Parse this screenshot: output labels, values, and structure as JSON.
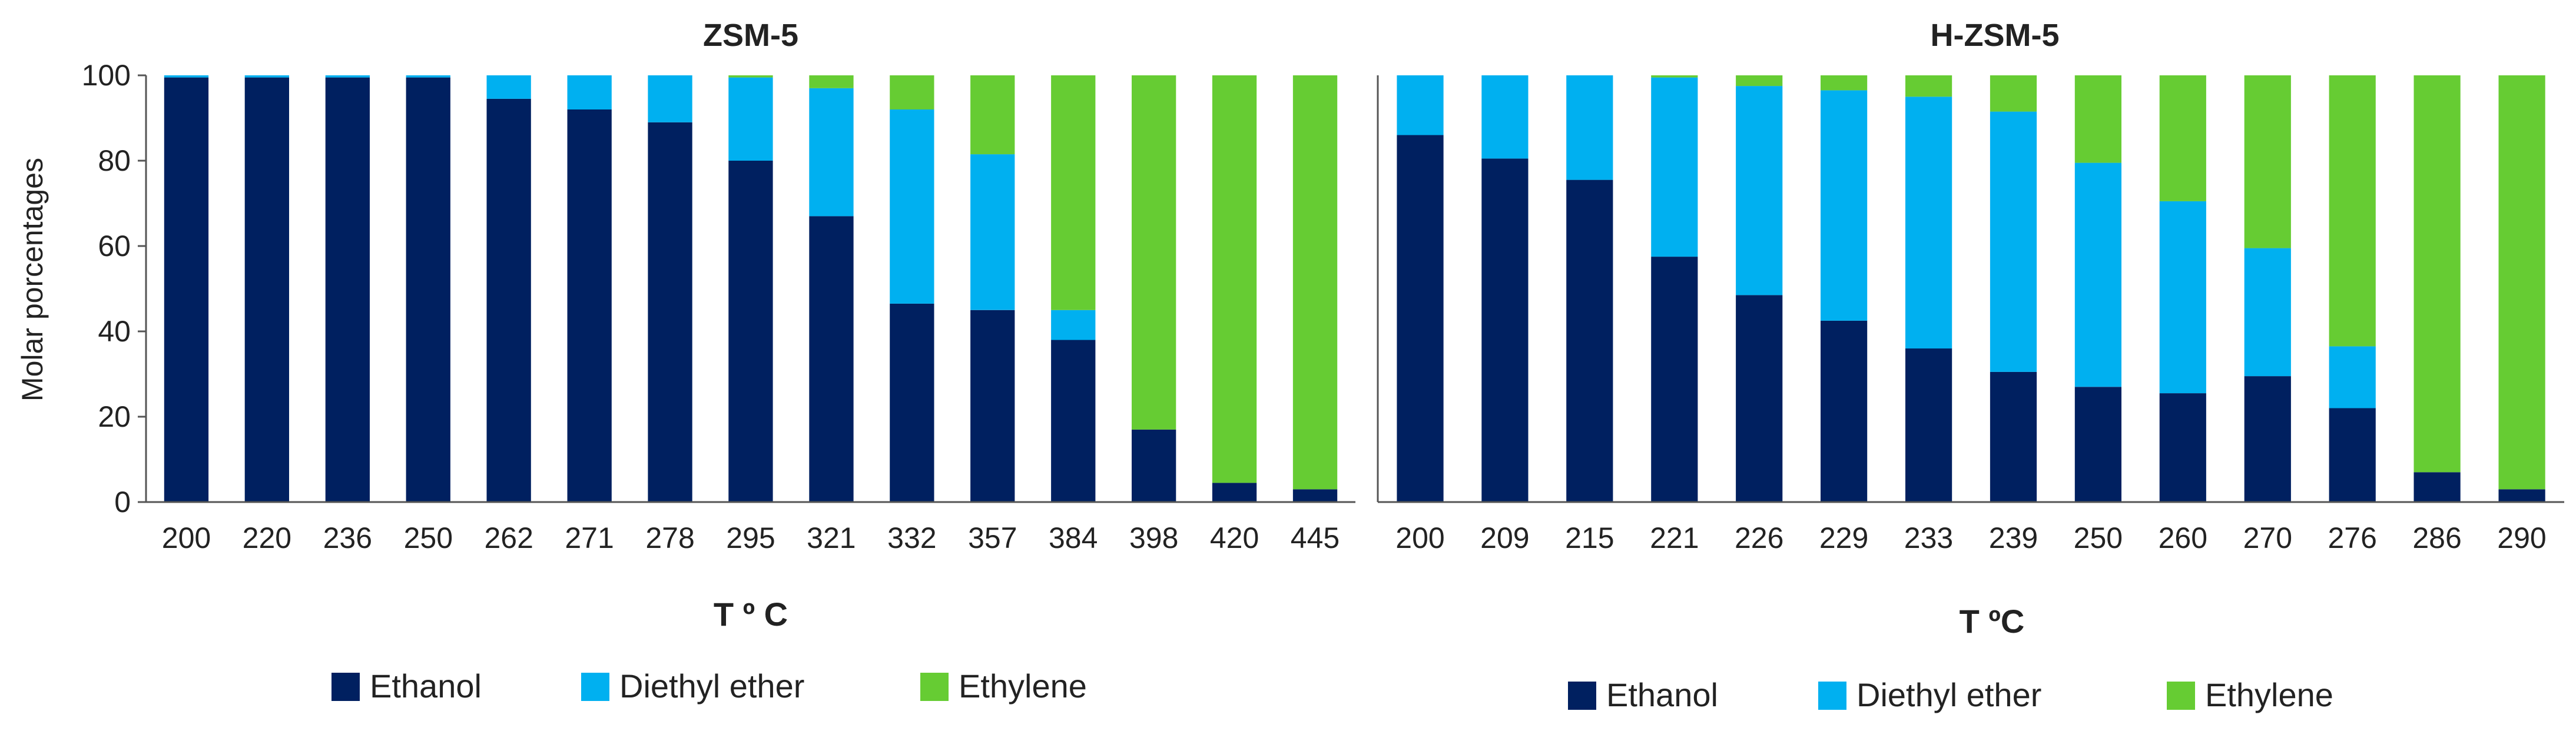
{
  "colors": {
    "Ethanol": "#002060",
    "Diethyl ether": "#00B0F0",
    "Ethylene": "#66CC33"
  },
  "chart_data": [
    {
      "type": "bar",
      "stacked": true,
      "title": "ZSM-5",
      "xlabel": "T º C",
      "ylabel": "Molar  porcentages",
      "ylim": [
        0,
        100
      ],
      "yticks": [
        0,
        20,
        40,
        60,
        80,
        100
      ],
      "grid": false,
      "legend_position": "bottom",
      "categories": [
        "200",
        "220",
        "236",
        "250",
        "262",
        "271",
        "278",
        "295",
        "321",
        "332",
        "357",
        "384",
        "398",
        "420",
        "445"
      ],
      "series": [
        {
          "name": "Ethanol",
          "values": [
            99.5,
            99.5,
            99.5,
            99.5,
            94.5,
            92,
            89,
            80,
            67,
            46.5,
            45,
            38,
            17,
            4.5,
            3
          ]
        },
        {
          "name": "Diethyl ether",
          "values": [
            0.5,
            0.5,
            0.5,
            0.5,
            5.5,
            8,
            11,
            19.5,
            30,
            45.5,
            36.5,
            7,
            0,
            0,
            0
          ]
        },
        {
          "name": "Ethylene",
          "values": [
            0,
            0,
            0,
            0,
            0,
            0,
            0,
            0.5,
            3,
            8,
            18.5,
            55,
            83,
            95.5,
            97
          ]
        }
      ]
    },
    {
      "type": "bar",
      "stacked": true,
      "title": "H-ZSM-5",
      "xlabel": "T ºC",
      "ylabel": "",
      "ylim": [
        0,
        100
      ],
      "yticks": [],
      "grid": false,
      "legend_position": "bottom",
      "categories": [
        "200",
        "209",
        "215",
        "221",
        "226",
        "229",
        "233",
        "239",
        "250",
        "260",
        "270",
        "276",
        "286",
        "290"
      ],
      "series": [
        {
          "name": "Ethanol",
          "values": [
            86,
            80.5,
            75.5,
            57.5,
            48.5,
            42.5,
            36,
            30.5,
            27,
            25.5,
            29.5,
            22,
            7,
            3
          ]
        },
        {
          "name": "Diethyl ether",
          "values": [
            14,
            19.5,
            24.5,
            42,
            49,
            54,
            59,
            61,
            52.5,
            45,
            30,
            14.5,
            0,
            0
          ]
        },
        {
          "name": "Ethylene",
          "values": [
            0,
            0,
            0,
            0.5,
            2.5,
            3.5,
            5,
            8.5,
            20.5,
            29.5,
            40.5,
            63.5,
            93,
            97
          ]
        }
      ]
    }
  ]
}
